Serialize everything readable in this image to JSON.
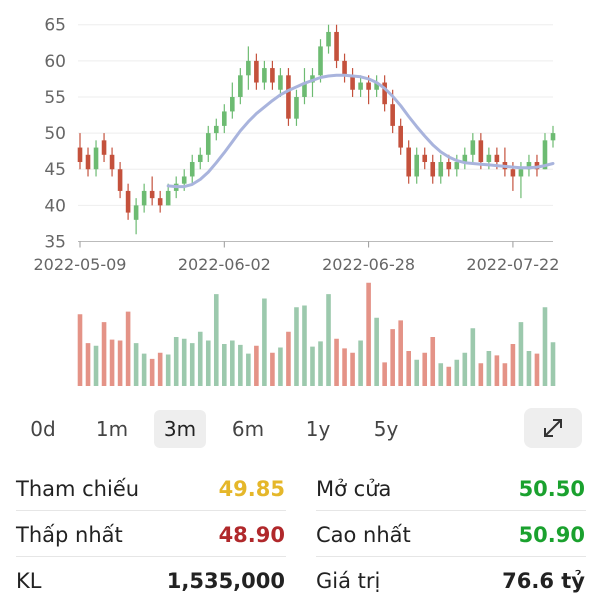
{
  "chart_data": {
    "type": "candlestick",
    "ylim": [
      35,
      66
    ],
    "yticks": [
      35,
      40,
      45,
      50,
      55,
      60,
      65
    ],
    "xtick_labels": [
      "2022-05-09",
      "2022-06-02",
      "2022-06-28",
      "2022-07-22"
    ],
    "xtick_indices": [
      0,
      18,
      36,
      54
    ],
    "colors": {
      "up": "#6dbb72",
      "down": "#c4513c",
      "ma": "#a9b4dd",
      "vol_up": "#9cc9ad",
      "vol_down": "#e49387"
    },
    "candles": [
      [
        48,
        50,
        45,
        46
      ],
      [
        47,
        48,
        44,
        45
      ],
      [
        45,
        49,
        44,
        48
      ],
      [
        49,
        50,
        46,
        47
      ],
      [
        47,
        48,
        44,
        45
      ],
      [
        45,
        46,
        41,
        42
      ],
      [
        42,
        43,
        38,
        39
      ],
      [
        38,
        41,
        36,
        40
      ],
      [
        40,
        43,
        39,
        42
      ],
      [
        42,
        44,
        40,
        41
      ],
      [
        41,
        42,
        39,
        40
      ],
      [
        40,
        43,
        40,
        42
      ],
      [
        42,
        44,
        41,
        43
      ],
      [
        43,
        45,
        42,
        44
      ],
      [
        44,
        47,
        43,
        46
      ],
      [
        46,
        48,
        45,
        47
      ],
      [
        47,
        51,
        46,
        50
      ],
      [
        50,
        52,
        49,
        51
      ],
      [
        51,
        54,
        50,
        53
      ],
      [
        53,
        57,
        52,
        55
      ],
      [
        55,
        59,
        54,
        58
      ],
      [
        58,
        62,
        56,
        60
      ],
      [
        60,
        61,
        56,
        57
      ],
      [
        57,
        60,
        56,
        59
      ],
      [
        59,
        60,
        56,
        57
      ],
      [
        56,
        59,
        55,
        58
      ],
      [
        58,
        59,
        51,
        52
      ],
      [
        52,
        56,
        51,
        55
      ],
      [
        55,
        59,
        54,
        57
      ],
      [
        57,
        59,
        55,
        58
      ],
      [
        58,
        63,
        57,
        62
      ],
      [
        62,
        65,
        61,
        64
      ],
      [
        64,
        65,
        59,
        60
      ],
      [
        60,
        61,
        57,
        58
      ],
      [
        58,
        59,
        55,
        56
      ],
      [
        56,
        58,
        55,
        57
      ],
      [
        57,
        58,
        54,
        56
      ],
      [
        56,
        58,
        55,
        57
      ],
      [
        57,
        58,
        53,
        54
      ],
      [
        54,
        56,
        50,
        51
      ],
      [
        51,
        52,
        47,
        48
      ],
      [
        48,
        49,
        43,
        44
      ],
      [
        44,
        48,
        43,
        47
      ],
      [
        47,
        48,
        45,
        46
      ],
      [
        46,
        47,
        43,
        44
      ],
      [
        44,
        47,
        43,
        46
      ],
      [
        46,
        47,
        44,
        45
      ],
      [
        45,
        47,
        44,
        46
      ],
      [
        46,
        48,
        45,
        47
      ],
      [
        47,
        50,
        46,
        49
      ],
      [
        49,
        50,
        45,
        46
      ],
      [
        46,
        48,
        45,
        47
      ],
      [
        47,
        48,
        45,
        46
      ],
      [
        46,
        48,
        44,
        45
      ],
      [
        45,
        46,
        42,
        44
      ],
      [
        44,
        46,
        41,
        45
      ],
      [
        45,
        47,
        44,
        46
      ],
      [
        46,
        47,
        44,
        45
      ],
      [
        45,
        50,
        45,
        49
      ],
      [
        49,
        51,
        48,
        50
      ]
    ],
    "moving_average": [
      null,
      null,
      null,
      null,
      null,
      null,
      null,
      null,
      null,
      null,
      null,
      42.7,
      42.6,
      42.6,
      42.9,
      43.6,
      44.6,
      45.9,
      47.3,
      48.8,
      50.3,
      51.6,
      52.7,
      53.6,
      54.5,
      55.3,
      55.9,
      56.4,
      56.9,
      57.3,
      57.7,
      57.9,
      58.0,
      58.0,
      57.9,
      57.8,
      57.5,
      57.0,
      56.2,
      55.1,
      53.8,
      52.3,
      50.9,
      49.6,
      48.4,
      47.4,
      46.7,
      46.2,
      45.9,
      45.8,
      45.7,
      45.6,
      45.5,
      45.4,
      45.3,
      45.2,
      45.2,
      45.3,
      45.5,
      45.8
    ],
    "volume": [
      0.82,
      0.49,
      0.46,
      0.73,
      0.53,
      0.52,
      0.85,
      0.49,
      0.37,
      0.31,
      0.38,
      0.36,
      0.56,
      0.54,
      0.49,
      0.62,
      0.52,
      1.05,
      0.48,
      0.52,
      0.47,
      0.37,
      0.46,
      1.0,
      0.38,
      0.44,
      0.62,
      0.9,
      0.92,
      0.45,
      0.51,
      1.05,
      0.54,
      0.43,
      0.38,
      0.52,
      1.18,
      0.78,
      0.27,
      0.65,
      0.75,
      0.4,
      0.3,
      0.38,
      0.56,
      0.26,
      0.22,
      0.3,
      0.38,
      0.66,
      0.26,
      0.4,
      0.35,
      0.26,
      0.48,
      0.73,
      0.4,
      0.37,
      0.9,
      0.5
    ]
  },
  "range_tabs": {
    "items": [
      "0d",
      "1m",
      "3m",
      "6m",
      "1y",
      "5y"
    ],
    "active": "3m"
  },
  "expand_icon": "expand-arrows-icon",
  "stats": {
    "reference_label": "Tham chiếu",
    "reference_value": "49.85",
    "open_label": "Mở cửa",
    "open_value": "50.50",
    "low_label": "Thấp nhất",
    "low_value": "48.90",
    "high_label": "Cao nhất",
    "high_value": "50.90",
    "volume_label": "KL",
    "volume_value": "1,535,000",
    "trade_value_label": "Giá trị",
    "trade_value_value": "76.6 tỷ",
    "colors": {
      "reference": "#e5b72a",
      "low": "#b0282b",
      "up": "#1aa12e",
      "neutral": "#222222"
    }
  }
}
